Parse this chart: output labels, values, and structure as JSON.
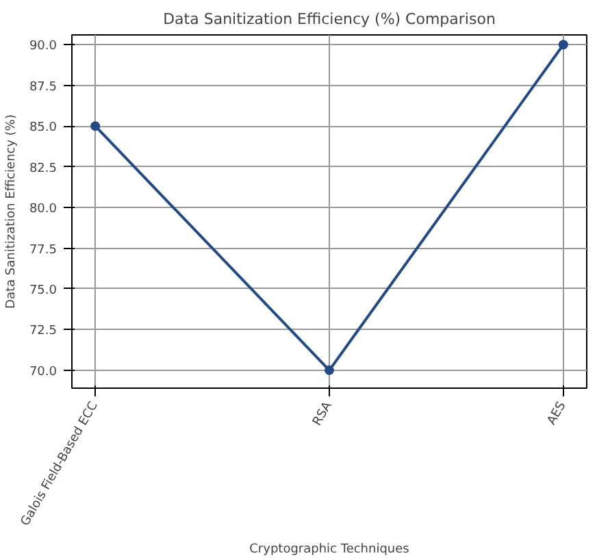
{
  "chart_data": {
    "type": "line",
    "title": "Data Sanitization Efficiency (%) Comparison",
    "xlabel": "Cryptographic Techniques",
    "ylabel": "Data Sanitization Efficiency (%)",
    "categories": [
      "Galois Field-Based ECC",
      "RSA",
      "AES"
    ],
    "series": [
      {
        "color": "#234a85",
        "values": [
          85,
          70,
          90
        ]
      }
    ],
    "ylim": [
      68.9,
      90.6
    ],
    "yticks": [
      {
        "value": 70,
        "label": "70.0"
      },
      {
        "value": 72.5,
        "label": "72.5"
      },
      {
        "value": 75,
        "label": "75.0"
      },
      {
        "value": 77.5,
        "label": "77.5"
      },
      {
        "value": 80,
        "label": "80.0"
      },
      {
        "value": 82.5,
        "label": "82.5"
      },
      {
        "value": 85,
        "label": "85.0"
      },
      {
        "value": 87.5,
        "label": "87.5"
      },
      {
        "value": 90,
        "label": "90.0"
      }
    ],
    "grid": true,
    "marker": "circle",
    "line_style": "solid"
  }
}
